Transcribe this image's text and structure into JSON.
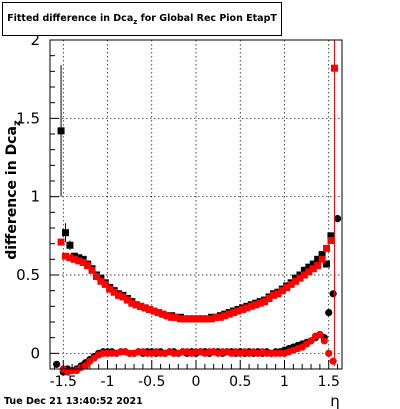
{
  "title": {
    "prefix": "Fitted difference in Dca",
    "subscript": "z",
    "suffix": " for Global Rec Pion EtapT"
  },
  "timestamp": "Tue Dec 21 13:40:52 2021",
  "colors": {
    "red": "#ff0000",
    "black": "#000000",
    "grid": "#000000"
  },
  "chart_data": {
    "type": "scatter",
    "title": "Fitted difference in Dca_z for Global Rec Pion EtapT",
    "xlabel": "η",
    "ylabel": "difference in Dca_z",
    "xlim": [
      -1.65,
      1.65
    ],
    "ylim": [
      -0.1,
      2.0
    ],
    "xticks": [
      -1.5,
      -1,
      -0.5,
      0,
      0.5,
      1,
      1.5
    ],
    "xtick_labels": [
      "-1.5",
      "-1",
      "-0.5",
      "0",
      "0.5",
      "1",
      "1.5"
    ],
    "yticks": [
      0,
      0.5,
      1,
      1.5,
      2
    ],
    "ytick_labels": [
      "0",
      "0.5",
      "1",
      "1.5",
      "2"
    ],
    "grid": true,
    "series": [
      {
        "color": "black",
        "marker": "square",
        "points": [
          {
            "x": -1.525,
            "y": 1.42,
            "err": 0.42
          },
          {
            "x": -1.475,
            "y": 0.77,
            "err": 0.06
          },
          {
            "x": -1.425,
            "y": 0.69,
            "err": 0.03
          },
          {
            "x": -1.375,
            "y": 0.62
          },
          {
            "x": -1.325,
            "y": 0.61
          },
          {
            "x": -1.275,
            "y": 0.6
          },
          {
            "x": -1.225,
            "y": 0.57
          },
          {
            "x": -1.175,
            "y": 0.54
          },
          {
            "x": -1.125,
            "y": 0.5
          },
          {
            "x": -1.075,
            "y": 0.48
          },
          {
            "x": -1.025,
            "y": 0.45
          },
          {
            "x": -0.975,
            "y": 0.42
          },
          {
            "x": -0.925,
            "y": 0.4
          },
          {
            "x": -0.875,
            "y": 0.38
          },
          {
            "x": -0.825,
            "y": 0.37
          },
          {
            "x": -0.775,
            "y": 0.35
          },
          {
            "x": -0.725,
            "y": 0.33
          },
          {
            "x": -0.675,
            "y": 0.31
          },
          {
            "x": -0.625,
            "y": 0.3
          },
          {
            "x": -0.575,
            "y": 0.29
          },
          {
            "x": -0.525,
            "y": 0.28
          },
          {
            "x": -0.475,
            "y": 0.27
          },
          {
            "x": -0.425,
            "y": 0.26
          },
          {
            "x": -0.375,
            "y": 0.25
          },
          {
            "x": -0.325,
            "y": 0.24
          },
          {
            "x": -0.275,
            "y": 0.24
          },
          {
            "x": -0.225,
            "y": 0.23
          },
          {
            "x": -0.175,
            "y": 0.23
          },
          {
            "x": -0.125,
            "y": 0.22
          },
          {
            "x": -0.075,
            "y": 0.22
          },
          {
            "x": -0.025,
            "y": 0.22
          },
          {
            "x": 0.025,
            "y": 0.22
          },
          {
            "x": 0.075,
            "y": 0.22
          },
          {
            "x": 0.125,
            "y": 0.22
          },
          {
            "x": 0.175,
            "y": 0.23
          },
          {
            "x": 0.225,
            "y": 0.23
          },
          {
            "x": 0.275,
            "y": 0.24
          },
          {
            "x": 0.325,
            "y": 0.25
          },
          {
            "x": 0.375,
            "y": 0.26
          },
          {
            "x": 0.425,
            "y": 0.27
          },
          {
            "x": 0.475,
            "y": 0.28
          },
          {
            "x": 0.525,
            "y": 0.29
          },
          {
            "x": 0.575,
            "y": 0.3
          },
          {
            "x": 0.625,
            "y": 0.31
          },
          {
            "x": 0.675,
            "y": 0.32
          },
          {
            "x": 0.725,
            "y": 0.33
          },
          {
            "x": 0.775,
            "y": 0.34
          },
          {
            "x": 0.825,
            "y": 0.36
          },
          {
            "x": 0.875,
            "y": 0.38
          },
          {
            "x": 0.925,
            "y": 0.39
          },
          {
            "x": 0.975,
            "y": 0.41
          },
          {
            "x": 1.025,
            "y": 0.43
          },
          {
            "x": 1.075,
            "y": 0.45
          },
          {
            "x": 1.125,
            "y": 0.48
          },
          {
            "x": 1.175,
            "y": 0.5
          },
          {
            "x": 1.225,
            "y": 0.53
          },
          {
            "x": 1.275,
            "y": 0.55
          },
          {
            "x": 1.325,
            "y": 0.57
          },
          {
            "x": 1.375,
            "y": 0.6
          },
          {
            "x": 1.425,
            "y": 0.63
          },
          {
            "x": 1.475,
            "y": 0.57
          },
          {
            "x": 1.525,
            "y": 0.75
          }
        ]
      },
      {
        "color": "black",
        "marker": "circle",
        "points": [
          {
            "x": -1.575,
            "y": -0.07
          },
          {
            "x": -1.5,
            "y": -0.12
          },
          {
            "x": -1.45,
            "y": -0.1
          },
          {
            "x": -1.4,
            "y": -0.11
          },
          {
            "x": -1.35,
            "y": -0.1
          },
          {
            "x": -1.3,
            "y": -0.08
          },
          {
            "x": -1.25,
            "y": -0.06
          },
          {
            "x": -1.2,
            "y": -0.04
          },
          {
            "x": -1.15,
            "y": -0.02
          },
          {
            "x": -1.1,
            "y": 0.0
          },
          {
            "x": -1.05,
            "y": 0.01
          },
          {
            "x": -1.0,
            "y": 0.01
          },
          {
            "x": -0.95,
            "y": 0.01
          },
          {
            "x": -0.9,
            "y": 0.0
          },
          {
            "x": -0.85,
            "y": 0.01
          },
          {
            "x": -0.8,
            "y": 0.01
          },
          {
            "x": -0.75,
            "y": 0.0
          },
          {
            "x": -0.7,
            "y": 0.0
          },
          {
            "x": -0.65,
            "y": 0.01
          },
          {
            "x": -0.6,
            "y": 0.0
          },
          {
            "x": -0.55,
            "y": 0.01
          },
          {
            "x": -0.5,
            "y": 0.01
          },
          {
            "x": -0.45,
            "y": 0.0
          },
          {
            "x": -0.4,
            "y": 0.01
          },
          {
            "x": -0.35,
            "y": 0.0
          },
          {
            "x": -0.3,
            "y": 0.01
          },
          {
            "x": -0.25,
            "y": 0.01
          },
          {
            "x": -0.2,
            "y": 0.0
          },
          {
            "x": -0.15,
            "y": 0.01
          },
          {
            "x": -0.1,
            "y": 0.0
          },
          {
            "x": -0.05,
            "y": 0.01
          },
          {
            "x": 0.0,
            "y": 0.0
          },
          {
            "x": 0.05,
            "y": 0.01
          },
          {
            "x": 0.1,
            "y": 0.01
          },
          {
            "x": 0.15,
            "y": 0.0
          },
          {
            "x": 0.2,
            "y": 0.01
          },
          {
            "x": 0.25,
            "y": 0.01
          },
          {
            "x": 0.3,
            "y": 0.0
          },
          {
            "x": 0.35,
            "y": 0.01
          },
          {
            "x": 0.4,
            "y": 0.01
          },
          {
            "x": 0.45,
            "y": 0.0
          },
          {
            "x": 0.5,
            "y": 0.01
          },
          {
            "x": 0.55,
            "y": 0.0
          },
          {
            "x": 0.6,
            "y": 0.01
          },
          {
            "x": 0.65,
            "y": 0.0
          },
          {
            "x": 0.7,
            "y": 0.01
          },
          {
            "x": 0.75,
            "y": 0.0
          },
          {
            "x": 0.8,
            "y": 0.01
          },
          {
            "x": 0.85,
            "y": 0.0
          },
          {
            "x": 0.9,
            "y": 0.01
          },
          {
            "x": 0.95,
            "y": 0.01
          },
          {
            "x": 1.0,
            "y": 0.02
          },
          {
            "x": 1.05,
            "y": 0.03
          },
          {
            "x": 1.1,
            "y": 0.04
          },
          {
            "x": 1.15,
            "y": 0.05
          },
          {
            "x": 1.2,
            "y": 0.06
          },
          {
            "x": 1.25,
            "y": 0.07
          },
          {
            "x": 1.3,
            "y": 0.08
          },
          {
            "x": 1.35,
            "y": 0.1
          },
          {
            "x": 1.4,
            "y": 0.12
          },
          {
            "x": 1.45,
            "y": 0.1
          },
          {
            "x": 1.5,
            "y": 0.26
          },
          {
            "x": 1.55,
            "y": 0.38
          },
          {
            "x": 1.6,
            "y": 0.86
          }
        ]
      },
      {
        "color": "red",
        "marker": "square",
        "points": [
          {
            "x": -1.525,
            "y": 0.71
          },
          {
            "x": -1.475,
            "y": 0.62
          },
          {
            "x": -1.425,
            "y": 0.61
          },
          {
            "x": -1.375,
            "y": 0.6
          },
          {
            "x": -1.325,
            "y": 0.59
          },
          {
            "x": -1.275,
            "y": 0.58
          },
          {
            "x": -1.225,
            "y": 0.56
          },
          {
            "x": -1.175,
            "y": 0.53
          },
          {
            "x": -1.125,
            "y": 0.49
          },
          {
            "x": -1.075,
            "y": 0.46
          },
          {
            "x": -1.025,
            "y": 0.44
          },
          {
            "x": -0.975,
            "y": 0.41
          },
          {
            "x": -0.925,
            "y": 0.39
          },
          {
            "x": -0.875,
            "y": 0.37
          },
          {
            "x": -0.825,
            "y": 0.36
          },
          {
            "x": -0.775,
            "y": 0.34
          },
          {
            "x": -0.725,
            "y": 0.32
          },
          {
            "x": -0.675,
            "y": 0.31
          },
          {
            "x": -0.625,
            "y": 0.3
          },
          {
            "x": -0.575,
            "y": 0.29
          },
          {
            "x": -0.525,
            "y": 0.28
          },
          {
            "x": -0.475,
            "y": 0.27
          },
          {
            "x": -0.425,
            "y": 0.26
          },
          {
            "x": -0.375,
            "y": 0.25
          },
          {
            "x": -0.325,
            "y": 0.24
          },
          {
            "x": -0.275,
            "y": 0.23
          },
          {
            "x": -0.225,
            "y": 0.23
          },
          {
            "x": -0.175,
            "y": 0.22
          },
          {
            "x": -0.125,
            "y": 0.22
          },
          {
            "x": -0.075,
            "y": 0.22
          },
          {
            "x": -0.025,
            "y": 0.22
          },
          {
            "x": 0.025,
            "y": 0.22
          },
          {
            "x": 0.075,
            "y": 0.22
          },
          {
            "x": 0.125,
            "y": 0.22
          },
          {
            "x": 0.175,
            "y": 0.22
          },
          {
            "x": 0.225,
            "y": 0.23
          },
          {
            "x": 0.275,
            "y": 0.23
          },
          {
            "x": 0.325,
            "y": 0.24
          },
          {
            "x": 0.375,
            "y": 0.25
          },
          {
            "x": 0.425,
            "y": 0.26
          },
          {
            "x": 0.475,
            "y": 0.27
          },
          {
            "x": 0.525,
            "y": 0.28
          },
          {
            "x": 0.575,
            "y": 0.29
          },
          {
            "x": 0.625,
            "y": 0.3
          },
          {
            "x": 0.675,
            "y": 0.31
          },
          {
            "x": 0.725,
            "y": 0.32
          },
          {
            "x": 0.775,
            "y": 0.33
          },
          {
            "x": 0.825,
            "y": 0.35
          },
          {
            "x": 0.875,
            "y": 0.37
          },
          {
            "x": 0.925,
            "y": 0.38
          },
          {
            "x": 0.975,
            "y": 0.4
          },
          {
            "x": 1.025,
            "y": 0.42
          },
          {
            "x": 1.075,
            "y": 0.44
          },
          {
            "x": 1.125,
            "y": 0.46
          },
          {
            "x": 1.175,
            "y": 0.48
          },
          {
            "x": 1.225,
            "y": 0.5
          },
          {
            "x": 1.275,
            "y": 0.52
          },
          {
            "x": 1.325,
            "y": 0.54
          },
          {
            "x": 1.375,
            "y": 0.56
          },
          {
            "x": 1.425,
            "y": 0.6
          },
          {
            "x": 1.475,
            "y": 0.67
          },
          {
            "x": 1.525,
            "y": 0.72
          },
          {
            "x": 1.565,
            "y": 1.82,
            "err": 1.9
          }
        ]
      },
      {
        "color": "red",
        "marker": "circle",
        "points": [
          {
            "x": -1.5,
            "y": -0.1
          },
          {
            "x": -1.45,
            "y": -0.12
          },
          {
            "x": -1.4,
            "y": -0.11
          },
          {
            "x": -1.35,
            "y": -0.11
          },
          {
            "x": -1.3,
            "y": -0.09
          },
          {
            "x": -1.25,
            "y": -0.08
          },
          {
            "x": -1.2,
            "y": -0.05
          },
          {
            "x": -1.15,
            "y": -0.03
          },
          {
            "x": -1.1,
            "y": -0.01
          },
          {
            "x": -1.05,
            "y": 0.0
          },
          {
            "x": -1.0,
            "y": 0.0
          },
          {
            "x": -0.95,
            "y": 0.0
          },
          {
            "x": -0.9,
            "y": 0.0
          },
          {
            "x": -0.85,
            "y": 0.01
          },
          {
            "x": -0.8,
            "y": 0.01
          },
          {
            "x": -0.75,
            "y": 0.0
          },
          {
            "x": -0.7,
            "y": 0.0
          },
          {
            "x": -0.65,
            "y": 0.01
          },
          {
            "x": -0.6,
            "y": 0.01
          },
          {
            "x": -0.55,
            "y": 0.0
          },
          {
            "x": -0.5,
            "y": 0.0
          },
          {
            "x": -0.45,
            "y": 0.01
          },
          {
            "x": -0.4,
            "y": 0.0
          },
          {
            "x": -0.35,
            "y": 0.0
          },
          {
            "x": -0.3,
            "y": 0.01
          },
          {
            "x": -0.25,
            "y": 0.0
          },
          {
            "x": -0.2,
            "y": 0.0
          },
          {
            "x": -0.15,
            "y": 0.01
          },
          {
            "x": -0.1,
            "y": 0.01
          },
          {
            "x": -0.05,
            "y": 0.0
          },
          {
            "x": 0.0,
            "y": 0.01
          },
          {
            "x": 0.05,
            "y": 0.01
          },
          {
            "x": 0.1,
            "y": 0.0
          },
          {
            "x": 0.15,
            "y": 0.01
          },
          {
            "x": 0.2,
            "y": 0.01
          },
          {
            "x": 0.25,
            "y": 0.0
          },
          {
            "x": 0.3,
            "y": 0.01
          },
          {
            "x": 0.35,
            "y": 0.01
          },
          {
            "x": 0.4,
            "y": 0.0
          },
          {
            "x": 0.45,
            "y": 0.01
          },
          {
            "x": 0.5,
            "y": 0.0
          },
          {
            "x": 0.55,
            "y": 0.01
          },
          {
            "x": 0.6,
            "y": 0.0
          },
          {
            "x": 0.65,
            "y": 0.01
          },
          {
            "x": 0.7,
            "y": 0.0
          },
          {
            "x": 0.75,
            "y": 0.01
          },
          {
            "x": 0.8,
            "y": 0.0
          },
          {
            "x": 0.85,
            "y": 0.0
          },
          {
            "x": 0.9,
            "y": 0.0
          },
          {
            "x": 0.95,
            "y": 0.0
          },
          {
            "x": 1.0,
            "y": 0.0
          },
          {
            "x": 1.05,
            "y": 0.01
          },
          {
            "x": 1.1,
            "y": 0.02
          },
          {
            "x": 1.15,
            "y": 0.03
          },
          {
            "x": 1.2,
            "y": 0.04
          },
          {
            "x": 1.25,
            "y": 0.06
          },
          {
            "x": 1.3,
            "y": 0.08
          },
          {
            "x": 1.35,
            "y": 0.11
          },
          {
            "x": 1.4,
            "y": 0.12
          },
          {
            "x": 1.45,
            "y": 0.08
          },
          {
            "x": 1.5,
            "y": 0.0
          },
          {
            "x": 1.55,
            "y": -0.05
          }
        ]
      }
    ]
  }
}
